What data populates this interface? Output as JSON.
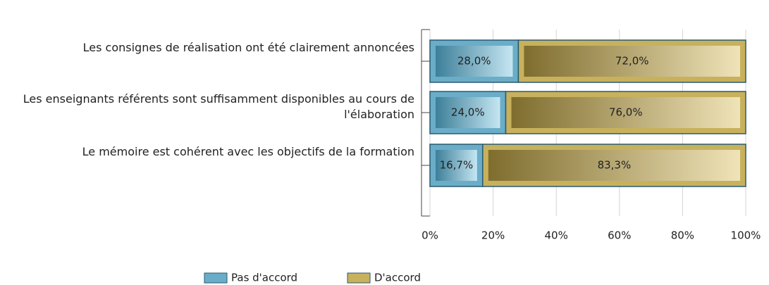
{
  "chart_data": {
    "type": "stacked-barh",
    "categories": [
      "Les consignes de réalisation ont été clairement annoncées",
      "Les enseignants référents sont suffisamment disponibles au cours de l'élaboration",
      "Le mémoire est cohérent avec les objectifs de la formation"
    ],
    "series": [
      {
        "name": "Pas d'accord",
        "color": "#6aadc8",
        "values": [
          28.0,
          24.0,
          16.7
        ],
        "value_labels": [
          "28,0%",
          "24,0%",
          "16,7%"
        ]
      },
      {
        "name": "D'accord",
        "color": "#c8b15d",
        "values": [
          72.0,
          76.0,
          83.3
        ],
        "value_labels": [
          "72,0%",
          "76,0%",
          "83,3%"
        ]
      }
    ],
    "xlim": [
      0,
      100
    ],
    "xticks": [
      {
        "value": 0,
        "label": "0%"
      },
      {
        "value": 20,
        "label": "20%"
      },
      {
        "value": 40,
        "label": "40%"
      },
      {
        "value": 60,
        "label": "60%"
      },
      {
        "value": 80,
        "label": "80%"
      },
      {
        "value": 100,
        "label": "100%"
      }
    ],
    "grid": true
  }
}
